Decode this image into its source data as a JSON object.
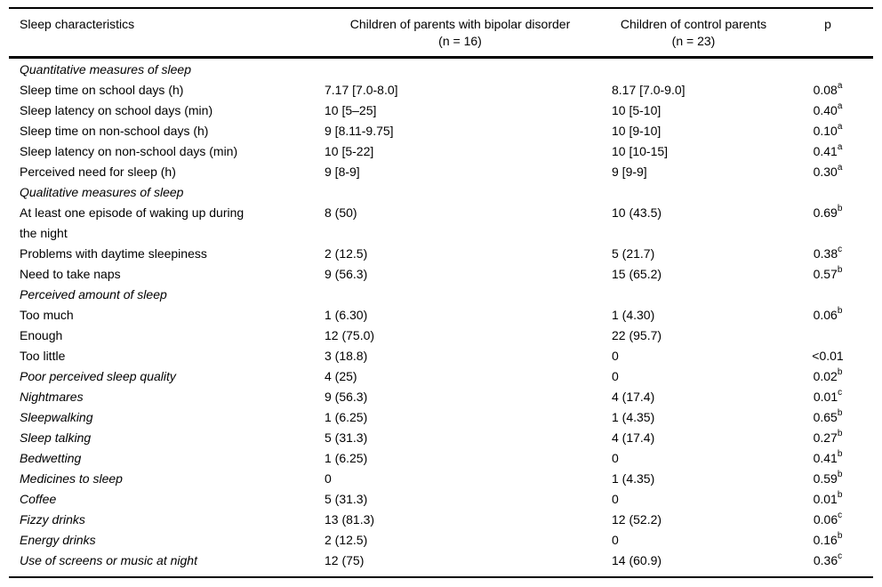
{
  "colors": {
    "background": "#ffffff",
    "text": "#000000",
    "rule": "#000000"
  },
  "table": {
    "header": {
      "characteristic": "Sleep characteristics",
      "bipolar_line1": "Children of parents with bipolar disorder",
      "bipolar_line2": "(n = 16)",
      "control_line1": "Children of control parents",
      "control_line2": "(n = 23)",
      "p": "p"
    },
    "rows": [
      {
        "type": "section",
        "label": "Quantitative measures of sleep"
      },
      {
        "type": "data",
        "italic": false,
        "label": "Sleep time on school days (h)",
        "bipolar": "7.17 [7.0-8.0]",
        "control": "8.17 [7.0-9.0]",
        "p": "0.08",
        "p_sup": "a"
      },
      {
        "type": "data",
        "italic": false,
        "label": "Sleep latency on school days (min)",
        "bipolar": "10 [5–25]",
        "control": "10 [5-10]",
        "p": "0.40",
        "p_sup": "a"
      },
      {
        "type": "data",
        "italic": false,
        "label": "Sleep time on non-school days (h)",
        "bipolar": "9 [8.11-9.75]",
        "control": "10 [9-10]",
        "p": "0.10",
        "p_sup": "a"
      },
      {
        "type": "data",
        "italic": false,
        "label": "Sleep latency on non-school days (min)",
        "bipolar": "10 [5-22]",
        "control": "10 [10-15]",
        "p": "0.41",
        "p_sup": "a"
      },
      {
        "type": "data",
        "italic": false,
        "label": "Perceived need for sleep (h)",
        "bipolar": "9 [8-9]",
        "control": "9 [9-9]",
        "p": "0.30",
        "p_sup": "a"
      },
      {
        "type": "section",
        "label": "Qualitative measures of sleep"
      },
      {
        "type": "data",
        "italic": false,
        "label": "At least one episode of waking up during\nthe night",
        "bipolar": "8 (50)",
        "control": "10 (43.5)",
        "p": "0.69",
        "p_sup": "b"
      },
      {
        "type": "data",
        "italic": false,
        "label": "Problems with daytime sleepiness",
        "bipolar": "2 (12.5)",
        "control": "5 (21.7)",
        "p": "0.38",
        "p_sup": "c"
      },
      {
        "type": "data",
        "italic": false,
        "label": "Need to take naps",
        "bipolar": "9 (56.3)",
        "control": "15 (65.2)",
        "p": "0.57",
        "p_sup": "b"
      },
      {
        "type": "section",
        "label": "Perceived amount of sleep"
      },
      {
        "type": "data",
        "italic": false,
        "label": "Too much",
        "bipolar": "1 (6.30)",
        "control": "1 (4.30)",
        "p": "0.06",
        "p_sup": "b"
      },
      {
        "type": "data",
        "italic": false,
        "label": "Enough",
        "bipolar": "12 (75.0)",
        "control": "22 (95.7)",
        "p": "",
        "p_sup": ""
      },
      {
        "type": "data",
        "italic": false,
        "label": "Too little",
        "bipolar": "3 (18.8)",
        "control": "0",
        "p": "<0.01",
        "p_sup": ""
      },
      {
        "type": "data",
        "italic": true,
        "label": "Poor perceived sleep quality",
        "bipolar": "4 (25)",
        "control": "0",
        "p": "0.02",
        "p_sup": "b"
      },
      {
        "type": "data",
        "italic": true,
        "label": "Nightmares",
        "bipolar": "9 (56.3)",
        "control": "4 (17.4)",
        "p": "0.01",
        "p_sup": "c"
      },
      {
        "type": "data",
        "italic": true,
        "label": "Sleepwalking",
        "bipolar": "1 (6.25)",
        "control": "1 (4.35)",
        "p": "0.65",
        "p_sup": "b"
      },
      {
        "type": "data",
        "italic": true,
        "label": "Sleep talking",
        "bipolar": "5 (31.3)",
        "control": "4 (17.4)",
        "p": "0.27",
        "p_sup": "b"
      },
      {
        "type": "data",
        "italic": true,
        "label": "Bedwetting",
        "bipolar": "1 (6.25)",
        "control": "0",
        "p": "0.41",
        "p_sup": "b"
      },
      {
        "type": "data",
        "italic": true,
        "label": "Medicines to sleep",
        "bipolar": "0",
        "control": "1 (4.35)",
        "p": "0.59",
        "p_sup": "b"
      },
      {
        "type": "data",
        "italic": true,
        "label": "Coffee",
        "bipolar": "5 (31.3)",
        "control": "0",
        "p": "0.01",
        "p_sup": "b"
      },
      {
        "type": "data",
        "italic": true,
        "label": "Fizzy drinks",
        "bipolar": "13 (81.3)",
        "control": "12 (52.2)",
        "p": "0.06",
        "p_sup": "c"
      },
      {
        "type": "data",
        "italic": true,
        "label": "Energy drinks",
        "bipolar": "2 (12.5)",
        "control": "0",
        "p": "0.16",
        "p_sup": "b"
      },
      {
        "type": "data",
        "italic": true,
        "label": "Use of screens or music at night",
        "bipolar": "12 (75)",
        "control": "14 (60.9)",
        "p": "0.36",
        "p_sup": "c"
      }
    ]
  }
}
